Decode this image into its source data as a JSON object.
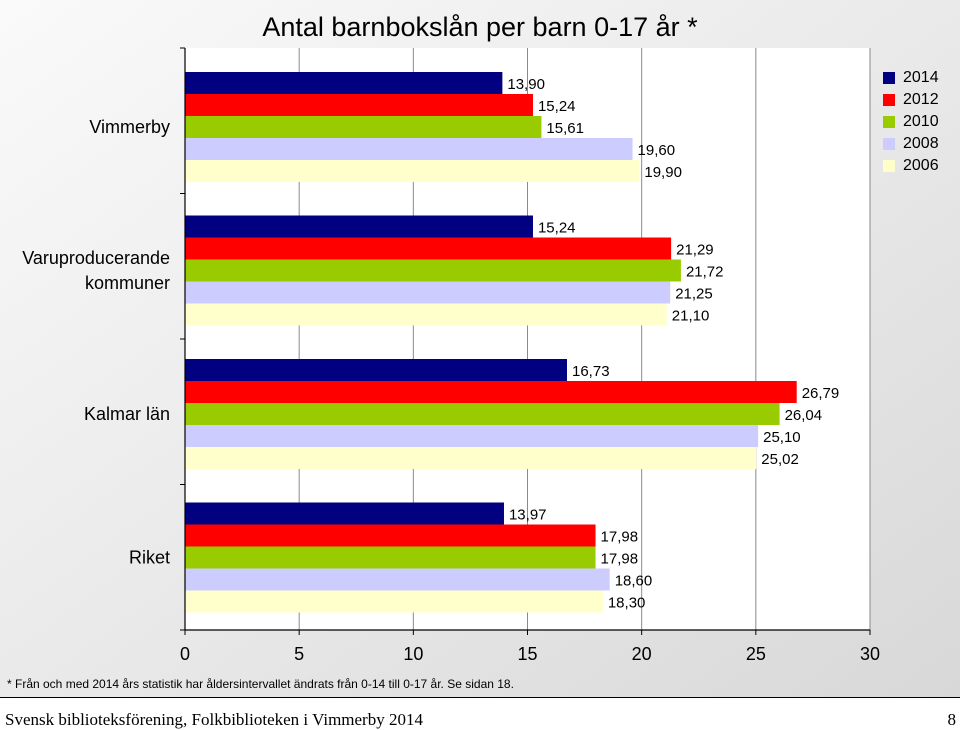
{
  "chart_data": {
    "type": "bar",
    "orientation": "horizontal",
    "title": "Antal barnbokslån per barn 0-17 år *",
    "categories": [
      "Vimmerby",
      "Varuproducerande kommuner",
      "Kalmar län",
      "Riket"
    ],
    "category_display": [
      [
        "Vimmerby"
      ],
      [
        "Varuproducerande",
        "kommuner"
      ],
      [
        "Kalmar län"
      ],
      [
        "Riket"
      ]
    ],
    "series": [
      {
        "name": "2014",
        "color": "#000080",
        "values": [
          13.9,
          15.24,
          16.73,
          13.97
        ],
        "labels": [
          "13,90",
          "15,24",
          "16,73",
          "13,97"
        ]
      },
      {
        "name": "2012",
        "color": "#ff0000",
        "values": [
          15.24,
          21.29,
          26.79,
          17.98
        ],
        "labels": [
          "15,24",
          "21,29",
          "26,79",
          "17,98"
        ]
      },
      {
        "name": "2010",
        "color": "#99cc00",
        "values": [
          15.61,
          21.72,
          26.04,
          17.98
        ],
        "labels": [
          "15,61",
          "21,72",
          "26,04",
          "17,98"
        ]
      },
      {
        "name": "2008",
        "color": "#ccccff",
        "values": [
          19.6,
          21.25,
          25.1,
          18.6
        ],
        "labels": [
          "19,60",
          "21,25",
          "25,10",
          "18,60"
        ]
      },
      {
        "name": "2006",
        "color": "#ffffcc",
        "values": [
          19.9,
          21.1,
          25.02,
          18.3
        ],
        "labels": [
          "19,90",
          "21,10",
          "25,02",
          "18,30"
        ]
      }
    ],
    "xlim": [
      0,
      30
    ],
    "xticks": [
      0,
      5,
      10,
      15,
      20,
      25,
      30
    ],
    "xlabel": "",
    "ylabel": "",
    "grid": true,
    "legend_position": "top-right"
  },
  "footnote": "* Från och med 2014 års statistik har åldersintervallet ändrats från 0-14 till 0-17 år. Se sidan 18.",
  "footer": {
    "text": "Svensk biblioteksförening, Folkbiblioteken i Vimmerby 2014",
    "page_number": "8"
  }
}
